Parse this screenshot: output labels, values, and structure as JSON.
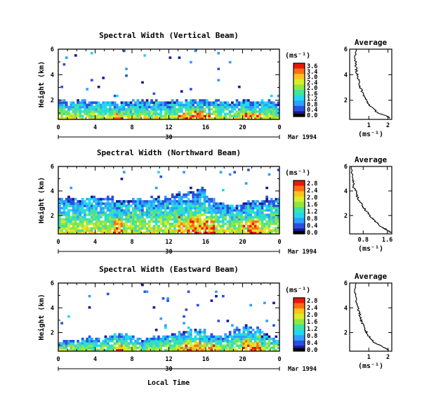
{
  "figure": {
    "xlabel": "Local Time",
    "date_label": "Mar 1994",
    "day_label": "30",
    "ylabel": "Height (km)",
    "unit_label": "(ms⁻¹)",
    "avg_title": "Average"
  },
  "colormap": [
    "#1a1a8c",
    "#2b50e0",
    "#2f9fff",
    "#22d8f0",
    "#3ee4a0",
    "#8fe640",
    "#d9ec2a",
    "#ffc21e",
    "#ff6c14",
    "#e8180c"
  ],
  "chart_data": [
    {
      "type": "heatmap",
      "title": "Spectral Width (Vertical Beam)",
      "x_ticks": [
        "0",
        "4",
        "8",
        "12",
        "16",
        "20",
        "0"
      ],
      "xlim": [
        0,
        24
      ],
      "y_ticks": [
        "2",
        "4",
        "6"
      ],
      "ylim": [
        0.5,
        6
      ],
      "colorbar_ticks": [
        "3.6",
        "3.4",
        "3.0",
        "2.4",
        "2.0",
        "1.6",
        "1.2",
        "0.8",
        "0.4",
        "0.0"
      ],
      "colorbar_range": [
        0,
        3.6
      ],
      "echo_top_km": [
        2.05,
        2.0,
        2.1,
        2.0,
        1.95,
        2.1,
        2.0,
        2.0,
        2.05,
        2.0,
        2.1,
        2.0,
        2.05,
        2.0,
        2.1,
        2.05,
        2.0,
        2.1,
        2.0,
        2.05,
        2.0,
        2.1,
        2.0,
        2.05
      ],
      "average": {
        "title": "Average",
        "xlabel": "(ms⁻¹)",
        "x_ticks": [
          "1",
          "2"
        ],
        "xlim": [
          0,
          2.2
        ],
        "y_ticks": [
          "2",
          "4",
          "6"
        ],
        "ylim": [
          0.5,
          6
        ],
        "x": [
          0.32,
          0.3,
          0.33,
          0.36,
          0.4,
          0.45,
          0.52,
          0.55,
          0.62,
          0.7,
          0.8,
          0.9,
          1.05,
          1.25,
          1.5,
          1.85,
          2.1
        ],
        "y": [
          6.0,
          5.2,
          4.6,
          4.3,
          3.9,
          3.6,
          3.3,
          3.0,
          2.8,
          2.5,
          2.2,
          1.9,
          1.6,
          1.3,
          1.0,
          0.8,
          0.6
        ]
      }
    },
    {
      "type": "heatmap",
      "title": "Spectral Width (Northward Beam)",
      "x_ticks": [
        "0",
        "4",
        "8",
        "12",
        "16",
        "20",
        "0"
      ],
      "xlim": [
        0,
        24
      ],
      "y_ticks": [
        "2",
        "4",
        "6"
      ],
      "ylim": [
        0.5,
        6
      ],
      "colorbar_ticks": [
        "2.8",
        "2.4",
        "2.0",
        "1.6",
        "1.2",
        "0.8",
        "0.4",
        "0.0"
      ],
      "colorbar_range": [
        0,
        2.8
      ],
      "echo_top_km": [
        3.4,
        3.6,
        3.4,
        3.7,
        3.5,
        3.6,
        3.3,
        3.4,
        3.5,
        3.4,
        3.6,
        3.5,
        3.7,
        3.9,
        4.1,
        4.3,
        3.6,
        3.2,
        3.0,
        2.9,
        3.2,
        3.3,
        3.4,
        3.5
      ],
      "average": {
        "title": "Average",
        "xlabel": "(ms⁻¹)",
        "x_ticks": [
          "0.8",
          "1.6"
        ],
        "xlim": [
          0.35,
          1.75
        ],
        "y_ticks": [
          "2",
          "4",
          "6"
        ],
        "ylim": [
          0.5,
          6
        ],
        "x": [
          0.42,
          0.45,
          0.5,
          0.48,
          0.55,
          0.58,
          0.62,
          0.7,
          0.78,
          0.86,
          0.95,
          1.05,
          1.15,
          1.3,
          1.45,
          1.6,
          1.72
        ],
        "y": [
          6.0,
          5.0,
          4.6,
          4.3,
          4.0,
          3.7,
          3.4,
          3.1,
          2.8,
          2.5,
          2.2,
          1.9,
          1.6,
          1.3,
          1.0,
          0.8,
          0.6
        ]
      }
    },
    {
      "type": "heatmap",
      "title": "Spectral Width (Eastward Beam)",
      "x_ticks": [
        "0",
        "4",
        "8",
        "12",
        "16",
        "20",
        "0"
      ],
      "xlim": [
        0,
        24
      ],
      "y_ticks": [
        "2",
        "4",
        "6"
      ],
      "ylim": [
        0.5,
        6
      ],
      "colorbar_ticks": [
        "2.8",
        "2.4",
        "2.0",
        "1.6",
        "1.2",
        "0.8",
        "0.4",
        "0.0"
      ],
      "colorbar_range": [
        0,
        2.8
      ],
      "echo_top_km": [
        1.5,
        1.6,
        1.5,
        1.7,
        1.6,
        1.8,
        2.0,
        1.9,
        1.7,
        1.6,
        1.8,
        1.9,
        2.0,
        2.2,
        2.4,
        2.3,
        2.0,
        1.8,
        2.0,
        2.4,
        2.6,
        2.5,
        1.9,
        1.7
      ],
      "average": {
        "title": "Average",
        "xlabel": "(ms⁻¹)",
        "x_ticks": [
          "1",
          "2"
        ],
        "xlim": [
          0,
          2.2
        ],
        "y_ticks": [
          "2",
          "4",
          "6"
        ],
        "ylim": [
          0.5,
          6
        ],
        "x": [
          0.3,
          0.28,
          0.32,
          0.38,
          0.45,
          0.5,
          0.55,
          0.6,
          0.68,
          0.75,
          0.85,
          0.95,
          1.1,
          1.3,
          1.55,
          1.8,
          2.05
        ],
        "y": [
          6.0,
          5.3,
          4.8,
          4.4,
          4.0,
          3.6,
          3.3,
          3.0,
          2.7,
          2.4,
          2.1,
          1.8,
          1.5,
          1.2,
          1.0,
          0.8,
          0.6
        ]
      }
    }
  ]
}
